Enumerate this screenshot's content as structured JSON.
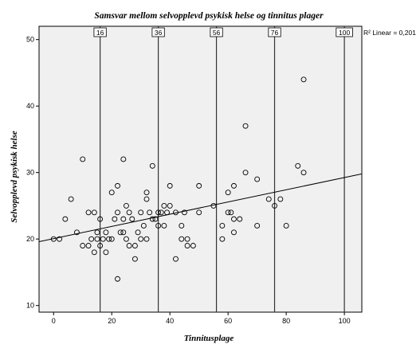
{
  "chart_data": {
    "type": "scatter",
    "title": "Samsvar mellom selvopplevd psykisk helse og tinnitus plager",
    "xlabel": "Tinnitusplage",
    "ylabel": "Selvopplevd psykisk helse",
    "xlim": [
      -5,
      106
    ],
    "ylim": [
      9,
      52
    ],
    "x_ticks": [
      0,
      20,
      40,
      60,
      80,
      100
    ],
    "y_ticks": [
      10,
      20,
      30,
      40,
      50
    ],
    "grid": false,
    "reference_lines": [
      {
        "label": "16",
        "x": 16
      },
      {
        "label": "36",
        "x": 36
      },
      {
        "label": "56",
        "x": 56
      },
      {
        "label": "76",
        "x": 76
      },
      {
        "label": "100",
        "x": 100
      }
    ],
    "fit_line": {
      "label": "R² Linear = 0,201",
      "points": [
        [
          -5,
          19.6
        ],
        [
          106,
          29.8
        ]
      ]
    },
    "points": [
      [
        0,
        20
      ],
      [
        2,
        20
      ],
      [
        4,
        23
      ],
      [
        6,
        26
      ],
      [
        8,
        21
      ],
      [
        10,
        32
      ],
      [
        10,
        19
      ],
      [
        12,
        24
      ],
      [
        12,
        19
      ],
      [
        13,
        20
      ],
      [
        14,
        24
      ],
      [
        14,
        18
      ],
      [
        15,
        21
      ],
      [
        15,
        20
      ],
      [
        16,
        19
      ],
      [
        16,
        23
      ],
      [
        17,
        20
      ],
      [
        18,
        21
      ],
      [
        18,
        18
      ],
      [
        19,
        20
      ],
      [
        20,
        27
      ],
      [
        20,
        20
      ],
      [
        21,
        23
      ],
      [
        22,
        24
      ],
      [
        22,
        28
      ],
      [
        22,
        14
      ],
      [
        23,
        21
      ],
      [
        24,
        32
      ],
      [
        24,
        23
      ],
      [
        24,
        21
      ],
      [
        25,
        20
      ],
      [
        25,
        25
      ],
      [
        26,
        19
      ],
      [
        26,
        24
      ],
      [
        27,
        23
      ],
      [
        28,
        19
      ],
      [
        28,
        17
      ],
      [
        29,
        21
      ],
      [
        30,
        24
      ],
      [
        30,
        20
      ],
      [
        31,
        22
      ],
      [
        32,
        26
      ],
      [
        32,
        27
      ],
      [
        32,
        20
      ],
      [
        33,
        24
      ],
      [
        34,
        31
      ],
      [
        34,
        23
      ],
      [
        35,
        23
      ],
      [
        36,
        24
      ],
      [
        36,
        22
      ],
      [
        37,
        24
      ],
      [
        38,
        25
      ],
      [
        38,
        22
      ],
      [
        39,
        24
      ],
      [
        40,
        28
      ],
      [
        40,
        25
      ],
      [
        42,
        24
      ],
      [
        42,
        17
      ],
      [
        44,
        20
      ],
      [
        44,
        22
      ],
      [
        45,
        24
      ],
      [
        46,
        20
      ],
      [
        46,
        19
      ],
      [
        48,
        19
      ],
      [
        50,
        28
      ],
      [
        50,
        24
      ],
      [
        55,
        25
      ],
      [
        58,
        22
      ],
      [
        58,
        20
      ],
      [
        60,
        27
      ],
      [
        60,
        24
      ],
      [
        61,
        24
      ],
      [
        62,
        28
      ],
      [
        62,
        23
      ],
      [
        62,
        21
      ],
      [
        64,
        23
      ],
      [
        66,
        37
      ],
      [
        66,
        30
      ],
      [
        70,
        29
      ],
      [
        70,
        22
      ],
      [
        74,
        26
      ],
      [
        76,
        25
      ],
      [
        78,
        26
      ],
      [
        80,
        22
      ],
      [
        84,
        31
      ],
      [
        86,
        44
      ],
      [
        86,
        30
      ]
    ]
  }
}
